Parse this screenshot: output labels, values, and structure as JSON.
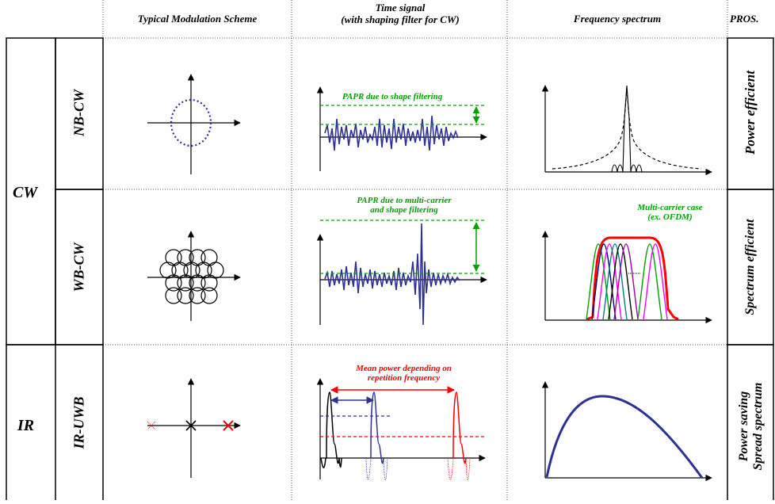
{
  "headers": {
    "modulation": "Typical Modulation Scheme",
    "time_line1": "Time signal",
    "time_line2": "(with shaping filter for CW)",
    "frequency": "Frequency spectrum",
    "pros": "PROS."
  },
  "groups": {
    "cw": "CW",
    "ir": "IR"
  },
  "rows": {
    "nbcw": {
      "label": "NB-CW",
      "pros": "Power efficient",
      "papr": "PAPR due to shape filtering"
    },
    "wbcw": {
      "label": "WB-CW",
      "pros": "Spectrum efficient",
      "papr_line1": "PAPR due to multi-carrier",
      "papr_line2": "and shape filtering",
      "mc_line1": "Multi-carrier case",
      "mc_line2": "(ex. OFDM)"
    },
    "iruwb": {
      "label": "IR-UWB",
      "pros_line1": "Power saving",
      "pros_line2": "Spread spectrum",
      "mean_line1": "Mean power depending on",
      "mean_line2": "repetition frequency"
    }
  },
  "colors": {
    "signal": "#2e3192",
    "annotation_green": "#00a000",
    "annotation_red": "#ff0000",
    "spectrum_red": "#ff0000",
    "dotted_constellation": "#2e3192"
  }
}
